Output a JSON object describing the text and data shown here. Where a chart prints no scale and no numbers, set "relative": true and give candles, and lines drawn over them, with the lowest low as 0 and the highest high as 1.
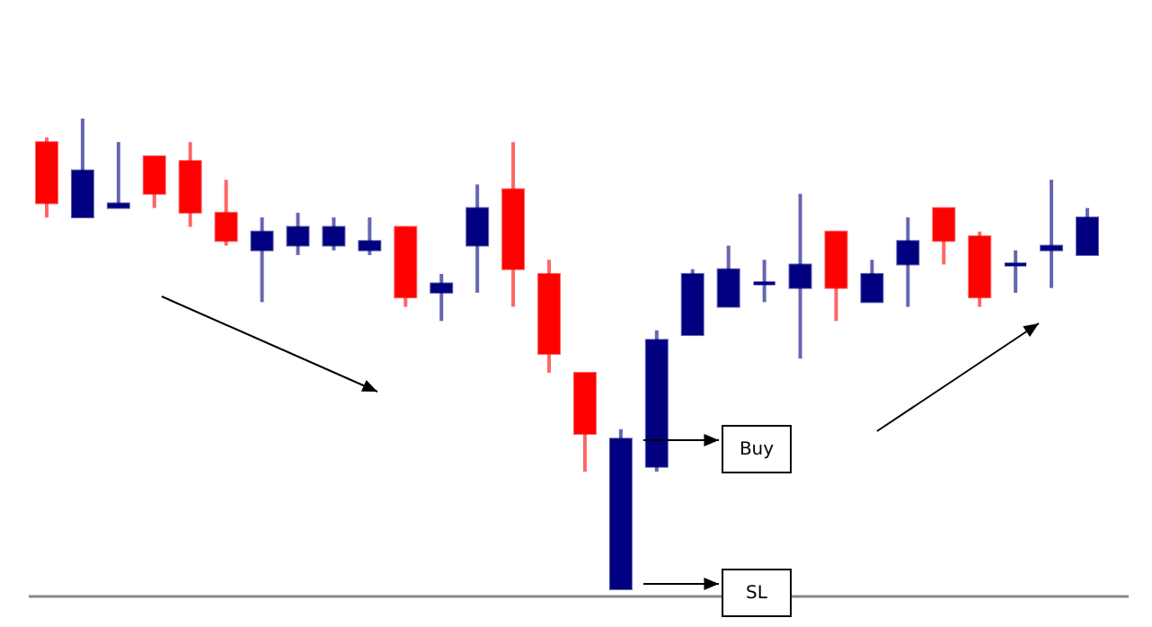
{
  "chart_data": {
    "type": "candlestick",
    "relative": true,
    "categories": [
      null,
      null,
      null,
      null,
      null,
      null,
      null,
      null,
      null,
      null,
      null,
      null,
      null,
      null,
      null,
      null,
      null,
      null,
      null,
      null,
      null,
      null,
      null,
      null,
      null,
      null,
      null,
      null,
      null,
      null
    ],
    "ohlc": [
      [
        0.95,
        0.96,
        0.79,
        0.82
      ],
      [
        0.79,
        1,
        0.79,
        0.89
      ],
      [
        0.81,
        0.95,
        0.81,
        0.82
      ],
      [
        0.92,
        0.92,
        0.81,
        0.84
      ],
      [
        0.91,
        0.95,
        0.77,
        0.8
      ],
      [
        0.8,
        0.87,
        0.73,
        0.74
      ],
      [
        0.72,
        0.79,
        0.61,
        0.76
      ],
      [
        0.73,
        0.8,
        0.71,
        0.77
      ],
      [
        0.73,
        0.79,
        0.72,
        0.77
      ],
      [
        0.72,
        0.79,
        0.71,
        0.74
      ],
      [
        0.77,
        0.77,
        0.6,
        0.62
      ],
      [
        0.63,
        0.67,
        0.57,
        0.65
      ],
      [
        0.73,
        0.86,
        0.63,
        0.81
      ],
      [
        0.85,
        0.95,
        0.6,
        0.68
      ],
      [
        0.67,
        0.7,
        0.46,
        0.5
      ],
      [
        0.46,
        0.46,
        0.25,
        0.33
      ],
      [
        0,
        0.34,
        0,
        0.32
      ],
      [
        0.26,
        0.55,
        0.25,
        0.53
      ],
      [
        0.54,
        0.68,
        0.54,
        0.67
      ],
      [
        0.6,
        0.73,
        0.6,
        0.68
      ],
      [
        0.65,
        0.7,
        0.61,
        0.65
      ],
      [
        0.64,
        0.84,
        0.49,
        0.69
      ],
      [
        0.76,
        0.76,
        0.57,
        0.64
      ],
      [
        0.61,
        0.7,
        0.61,
        0.67
      ],
      [
        0.69,
        0.79,
        0.6,
        0.74
      ],
      [
        0.81,
        0.81,
        0.69,
        0.74
      ],
      [
        0.75,
        0.76,
        0.6,
        0.62
      ],
      [
        0.69,
        0.72,
        0.63,
        0.69
      ],
      [
        0.72,
        0.87,
        0.64,
        0.73
      ],
      [
        0.71,
        0.81,
        0.71,
        0.79
      ]
    ],
    "colors": [
      "#ff0000",
      "#000080",
      "#000080",
      "#ff0000",
      "#ff0000",
      "#ff0000",
      "#000080",
      "#000080",
      "#000080",
      "#000080",
      "#ff0000",
      "#000080",
      "#000080",
      "#ff0000",
      "#ff0000",
      "#ff0000",
      "#000080",
      "#000080",
      "#000080",
      "#000080",
      "#000080",
      "#000080",
      "#ff0000",
      "#000080",
      "#000080",
      "#ff0000",
      "#ff0000",
      "#000080",
      "#000080",
      "#000080"
    ],
    "annotations": [
      "Buy",
      "SL"
    ]
  }
}
